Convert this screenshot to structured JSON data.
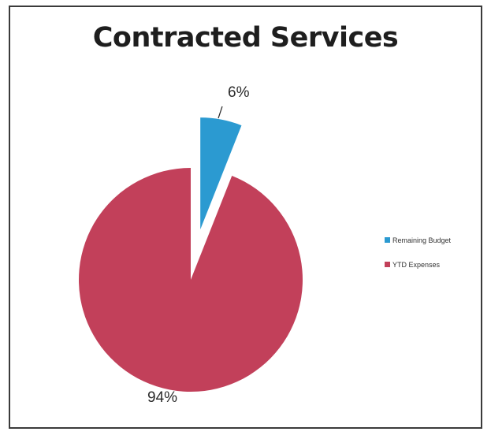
{
  "chart_data": {
    "type": "pie",
    "title": "Contracted Services",
    "categories": [
      "Remaining Budget",
      "YTD Expenses"
    ],
    "values": [
      6,
      94
    ],
    "data_labels": [
      "6%",
      "94%"
    ],
    "colors": [
      "#2b9ad1",
      "#c2405a"
    ],
    "exploded_slice": "Remaining Budget",
    "legend_position": "right"
  }
}
